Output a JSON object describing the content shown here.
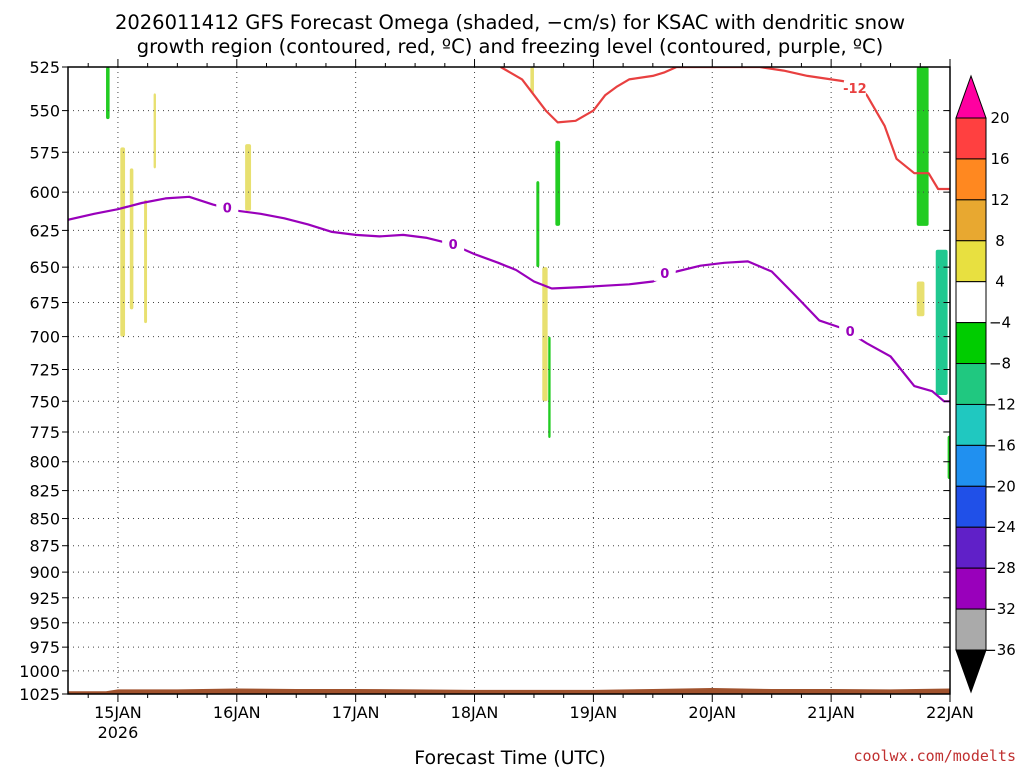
{
  "chart_data": {
    "type": "line",
    "title_line1": "2026011412 GFS Forecast Omega (shaded, −cm/s) for KSAC with dendritic snow",
    "title_line2": "growth region (contoured, red, ºC) and freezing level (contoured, purple, ºC)",
    "xlabel": "Forecast Time (UTC)",
    "credit": "coolwx.com/modelts",
    "x_range_days": [
      14.58,
      22.0
    ],
    "x_ticks": [
      {
        "day": 15,
        "label": "15JAN",
        "sub": "2026"
      },
      {
        "day": 16,
        "label": "16JAN",
        "sub": ""
      },
      {
        "day": 17,
        "label": "17JAN",
        "sub": ""
      },
      {
        "day": 18,
        "label": "18JAN",
        "sub": ""
      },
      {
        "day": 19,
        "label": "19JAN",
        "sub": ""
      },
      {
        "day": 20,
        "label": "20JAN",
        "sub": ""
      },
      {
        "day": 21,
        "label": "21JAN",
        "sub": ""
      },
      {
        "day": 22,
        "label": "22JAN",
        "sub": ""
      }
    ],
    "y_range_hpa": [
      525,
      1025
    ],
    "y_ticks": [
      525,
      550,
      575,
      600,
      625,
      650,
      675,
      700,
      725,
      750,
      775,
      800,
      825,
      850,
      875,
      900,
      925,
      950,
      975,
      1000,
      1025
    ],
    "grid": true,
    "freezing_level": {
      "label": "0",
      "color": "#9900bb",
      "points": [
        [
          14.58,
          618
        ],
        [
          14.8,
          614
        ],
        [
          15.0,
          611
        ],
        [
          15.2,
          607
        ],
        [
          15.4,
          604
        ],
        [
          15.6,
          603
        ],
        [
          15.8,
          608
        ],
        [
          16.0,
          612
        ],
        [
          16.2,
          614
        ],
        [
          16.4,
          617
        ],
        [
          16.6,
          621
        ],
        [
          16.8,
          626
        ],
        [
          17.0,
          628
        ],
        [
          17.2,
          629
        ],
        [
          17.4,
          628
        ],
        [
          17.6,
          630
        ],
        [
          17.8,
          634
        ],
        [
          18.0,
          641
        ],
        [
          18.2,
          647
        ],
        [
          18.35,
          652
        ],
        [
          18.5,
          660
        ],
        [
          18.65,
          665
        ],
        [
          18.9,
          664
        ],
        [
          19.1,
          663
        ],
        [
          19.3,
          662
        ],
        [
          19.5,
          660
        ],
        [
          19.7,
          653
        ],
        [
          19.9,
          649
        ],
        [
          20.1,
          647
        ],
        [
          20.3,
          646
        ],
        [
          20.5,
          653
        ],
        [
          20.7,
          670
        ],
        [
          20.9,
          688
        ],
        [
          21.1,
          694
        ],
        [
          21.3,
          705
        ],
        [
          21.5,
          715
        ],
        [
          21.7,
          738
        ],
        [
          21.85,
          742
        ],
        [
          21.95,
          750
        ],
        [
          22.0,
          750
        ]
      ],
      "labels": [
        [
          15.92,
          610
        ],
        [
          17.82,
          634
        ],
        [
          19.6,
          654
        ],
        [
          21.16,
          696
        ]
      ]
    },
    "dendritic_minus12": {
      "label": "-12",
      "color": "#e84040",
      "points": [
        [
          18.22,
          525
        ],
        [
          18.4,
          532
        ],
        [
          18.5,
          541
        ],
        [
          18.6,
          550
        ],
        [
          18.7,
          557
        ],
        [
          18.85,
          556
        ],
        [
          19.0,
          550
        ],
        [
          19.1,
          541
        ],
        [
          19.2,
          536
        ],
        [
          19.3,
          532
        ],
        [
          19.5,
          530
        ],
        [
          19.6,
          528
        ],
        [
          19.7,
          525
        ],
        [
          19.75,
          525
        ],
        [
          20.4,
          525
        ],
        [
          20.6,
          527
        ],
        [
          20.8,
          530
        ],
        [
          21.0,
          532
        ],
        [
          21.2,
          534
        ],
        [
          21.3,
          541
        ],
        [
          21.45,
          559
        ],
        [
          21.55,
          579
        ],
        [
          21.7,
          588
        ],
        [
          21.82,
          588
        ],
        [
          21.9,
          598
        ],
        [
          22.0,
          598
        ]
      ],
      "labels": [
        [
          21.2,
          537
        ]
      ]
    },
    "omega_colorbar": {
      "levels": [
        20,
        16,
        12,
        8,
        4,
        -4,
        -8,
        -12,
        -16,
        -20,
        -24,
        -28,
        -32,
        -36
      ],
      "colors": [
        "#ff00a0",
        "#ff4040",
        "#ff8820",
        "#e8a830",
        "#e8e040",
        "#ffffff",
        "#00cc00",
        "#20c880",
        "#20c8c0",
        "#2090f0",
        "#2050e8",
        "#6020c8",
        "#9900bb",
        "#aaaaaa",
        "#000000"
      ]
    },
    "omega_patches": [
      {
        "x": 14.9,
        "w": 0.03,
        "p1": 525,
        "p2": 555,
        "color": "#22cc22"
      },
      {
        "x": 15.02,
        "w": 0.04,
        "p1": 572,
        "p2": 700,
        "color": "#e8e070"
      },
      {
        "x": 15.1,
        "w": 0.03,
        "p1": 585,
        "p2": 680,
        "color": "#e8e070"
      },
      {
        "x": 15.22,
        "w": 0.025,
        "p1": 605,
        "p2": 690,
        "color": "#e8e070"
      },
      {
        "x": 15.3,
        "w": 0.02,
        "p1": 540,
        "p2": 585,
        "color": "#e8e070"
      },
      {
        "x": 16.07,
        "w": 0.05,
        "p1": 570,
        "p2": 612,
        "color": "#e8e070"
      },
      {
        "x": 18.47,
        "w": 0.03,
        "p1": 525,
        "p2": 540,
        "color": "#e8e070"
      },
      {
        "x": 18.52,
        "w": 0.025,
        "p1": 593,
        "p2": 650,
        "color": "#22cc22"
      },
      {
        "x": 18.57,
        "w": 0.045,
        "p1": 650,
        "p2": 750,
        "color": "#e8e070"
      },
      {
        "x": 18.62,
        "w": 0.02,
        "p1": 700,
        "p2": 780,
        "color": "#22cc22"
      },
      {
        "x": 18.68,
        "w": 0.04,
        "p1": 568,
        "p2": 622,
        "color": "#22cc22"
      },
      {
        "x": 21.72,
        "w": 0.1,
        "p1": 525,
        "p2": 622,
        "color": "#22cc22"
      },
      {
        "x": 21.72,
        "w": 0.065,
        "p1": 660,
        "p2": 685,
        "color": "#e8e070"
      },
      {
        "x": 21.88,
        "w": 0.1,
        "p1": 638,
        "p2": 745,
        "color": "#20c890"
      },
      {
        "x": 21.98,
        "w": 0.06,
        "p1": 778,
        "p2": 815,
        "color": "#22cc22"
      }
    ],
    "terrain_color": "#a0522d"
  }
}
